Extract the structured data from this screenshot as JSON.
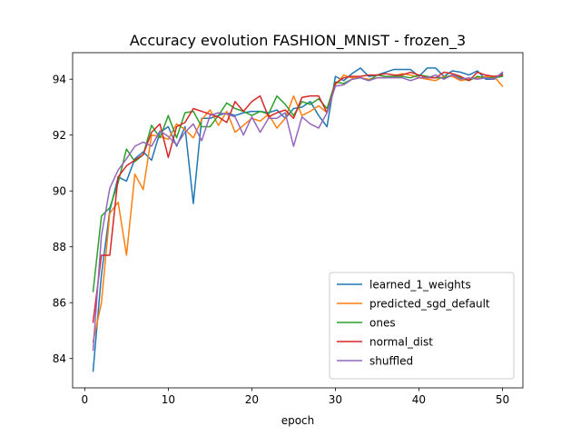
{
  "chart_data": {
    "type": "line",
    "title": "Accuracy evolution FASHION_MNIST - frozen_3",
    "xlabel": "epoch",
    "ylabel": "",
    "xlim": [
      -1.45,
      52.45
    ],
    "ylim": [
      82.95,
      94.95
    ],
    "xticks": [
      0,
      10,
      20,
      30,
      40,
      50
    ],
    "yticks": [
      84,
      86,
      88,
      90,
      92,
      94
    ],
    "grid": false,
    "legend_position": "lower-right",
    "x": [
      1,
      2,
      3,
      4,
      5,
      6,
      7,
      8,
      9,
      10,
      11,
      12,
      13,
      14,
      15,
      16,
      17,
      18,
      19,
      20,
      21,
      22,
      23,
      24,
      25,
      26,
      27,
      28,
      29,
      30,
      31,
      32,
      33,
      34,
      35,
      36,
      37,
      38,
      39,
      40,
      41,
      42,
      43,
      44,
      45,
      46,
      47,
      48,
      49,
      50
    ],
    "series": [
      {
        "name": "learned_1_weights",
        "color": "#1f77b4",
        "values": [
          83.55,
          87.0,
          89.3,
          90.5,
          90.35,
          91.15,
          91.4,
          91.1,
          92.1,
          92.3,
          91.6,
          92.3,
          89.55,
          92.6,
          92.6,
          92.7,
          92.8,
          92.7,
          92.8,
          92.85,
          92.85,
          92.8,
          92.9,
          92.6,
          92.95,
          93.0,
          93.2,
          92.7,
          92.3,
          94.1,
          93.95,
          94.2,
          94.4,
          94.1,
          94.15,
          94.25,
          94.35,
          94.35,
          94.35,
          94.1,
          94.4,
          94.4,
          94.1,
          94.3,
          94.25,
          94.15,
          94.3,
          94.0,
          94.0,
          94.2
        ]
      },
      {
        "name": "predicted_sgd_default",
        "color": "#ff7f0e",
        "values": [
          84.6,
          86.0,
          89.2,
          89.6,
          87.7,
          90.6,
          90.05,
          92.0,
          91.95,
          91.85,
          92.4,
          92.2,
          91.9,
          92.55,
          92.9,
          92.35,
          92.85,
          92.1,
          92.35,
          92.6,
          92.5,
          92.75,
          92.25,
          92.6,
          93.4,
          92.7,
          92.85,
          93.05,
          92.8,
          93.8,
          94.15,
          94.05,
          94.05,
          94.0,
          94.05,
          94.05,
          94.1,
          94.2,
          94.15,
          94.05,
          94.0,
          93.95,
          94.1,
          94.1,
          93.95,
          94.0,
          94.05,
          94.1,
          94.1,
          93.75
        ]
      },
      {
        "name": "ones",
        "color": "#2ca02c",
        "values": [
          86.4,
          89.1,
          89.4,
          90.3,
          91.5,
          91.05,
          91.3,
          92.35,
          91.9,
          92.7,
          91.9,
          92.8,
          92.85,
          92.3,
          92.3,
          92.7,
          93.15,
          92.95,
          92.85,
          92.7,
          92.85,
          92.75,
          93.4,
          93.1,
          92.7,
          93.2,
          93.1,
          93.3,
          92.95,
          93.9,
          93.85,
          94.0,
          94.05,
          93.95,
          94.15,
          94.1,
          94.1,
          94.1,
          94.05,
          94.15,
          94.1,
          94.05,
          94.05,
          94.15,
          94.05,
          93.95,
          94.1,
          94.05,
          94.05,
          94.1
        ]
      },
      {
        "name": "normal_dist",
        "color": "#d62728",
        "values": [
          85.3,
          87.7,
          87.7,
          90.5,
          90.9,
          91.1,
          91.3,
          92.1,
          92.4,
          91.2,
          92.3,
          92.45,
          92.95,
          92.85,
          92.75,
          92.65,
          92.45,
          93.2,
          92.85,
          93.2,
          93.4,
          92.65,
          92.8,
          92.9,
          92.6,
          93.35,
          93.4,
          93.4,
          92.8,
          93.85,
          94.05,
          94.1,
          94.1,
          94.15,
          94.15,
          94.2,
          94.15,
          94.15,
          94.25,
          94.15,
          94.05,
          94.05,
          94.25,
          94.2,
          94.1,
          93.95,
          94.25,
          94.15,
          94.1,
          94.15
        ]
      },
      {
        "name": "shuffled",
        "color": "#9467bd",
        "values": [
          84.3,
          88.4,
          90.1,
          90.75,
          91.15,
          91.6,
          91.75,
          91.6,
          92.15,
          91.95,
          91.65,
          92.1,
          92.4,
          91.8,
          92.7,
          92.8,
          92.75,
          92.65,
          92.0,
          92.65,
          92.1,
          92.6,
          92.6,
          92.8,
          91.6,
          92.65,
          92.4,
          92.25,
          92.8,
          93.75,
          93.8,
          94.0,
          94.05,
          93.95,
          94.05,
          94.05,
          94.05,
          94.05,
          93.95,
          94.05,
          94.05,
          94.15,
          94.0,
          94.15,
          94.0,
          94.05,
          94.0,
          94.05,
          94.0,
          94.25
        ]
      }
    ]
  }
}
